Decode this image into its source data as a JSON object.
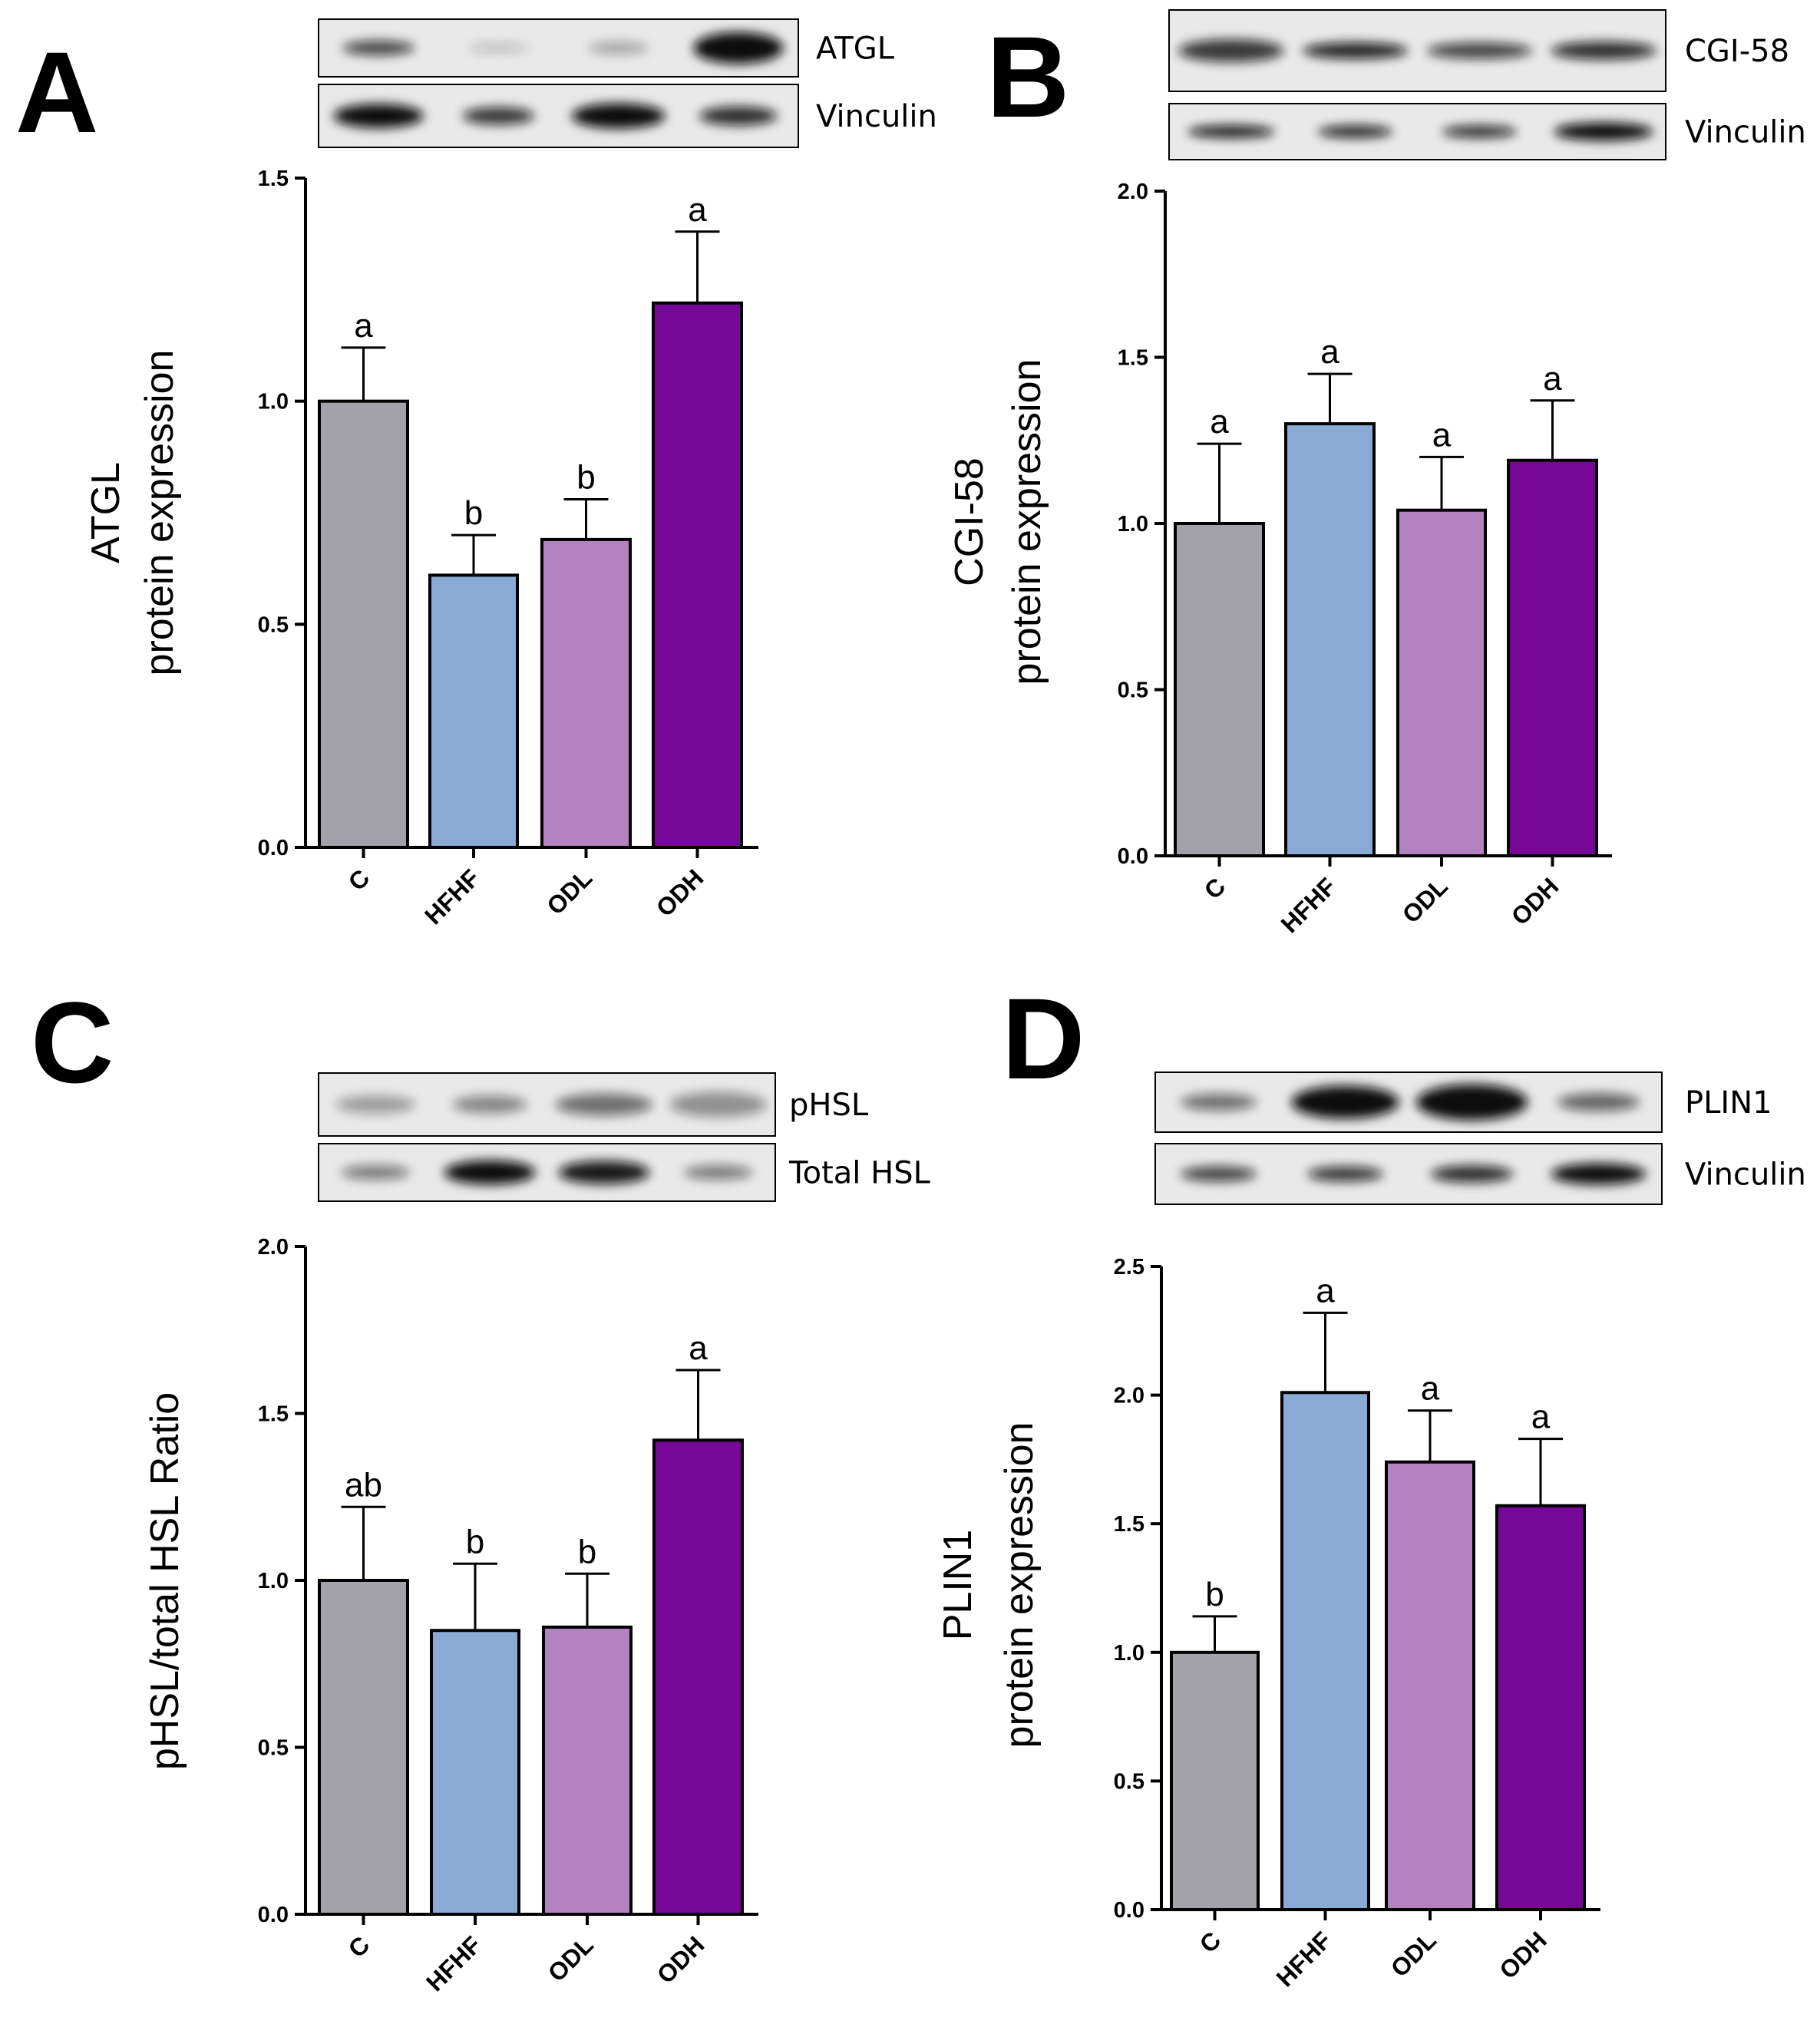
{
  "panels": [
    {
      "letter": "A",
      "blots": [
        "ATGL",
        "Vinculin"
      ],
      "chart_data": {
        "type": "bar",
        "categories": [
          "C",
          "HFHF",
          "ODL",
          "ODH"
        ],
        "values": [
          1.0,
          0.61,
          0.69,
          1.22
        ],
        "errors": [
          0.12,
          0.09,
          0.09,
          0.16
        ],
        "significance": [
          "a",
          "b",
          "b",
          "a"
        ],
        "ylabel_lines": [
          "ATGL",
          "protein expression"
        ],
        "xlabel": "",
        "ylim": [
          0,
          1.5
        ],
        "yticks": [
          "0.0",
          "0.5",
          "1.0",
          "1.5"
        ],
        "grid": false
      }
    },
    {
      "letter": "B",
      "blots": [
        "CGI-58",
        "Vinculin"
      ],
      "chart_data": {
        "type": "bar",
        "categories": [
          "C",
          "HFHF",
          "ODL",
          "ODH"
        ],
        "values": [
          1.0,
          1.3,
          1.04,
          1.19
        ],
        "errors": [
          0.24,
          0.15,
          0.16,
          0.18
        ],
        "significance": [
          "a",
          "a",
          "a",
          "a"
        ],
        "ylabel_lines": [
          "CGI-58",
          "protein expression"
        ],
        "xlabel": "",
        "ylim": [
          0,
          2.0
        ],
        "yticks": [
          "0.0",
          "0.5",
          "1.0",
          "1.5",
          "2.0"
        ],
        "grid": false
      }
    },
    {
      "letter": "C",
      "blots": [
        "pHSL",
        "Total HSL"
      ],
      "chart_data": {
        "type": "bar",
        "categories": [
          "C",
          "HFHF",
          "ODL",
          "ODH"
        ],
        "values": [
          1.0,
          0.85,
          0.86,
          1.42
        ],
        "errors": [
          0.22,
          0.2,
          0.16,
          0.21
        ],
        "significance": [
          "ab",
          "b",
          "b",
          "a"
        ],
        "ylabel_lines": [
          "pHSL/total HSL Ratio"
        ],
        "xlabel": "",
        "ylim": [
          0,
          2.0
        ],
        "yticks": [
          "0.0",
          "0.5",
          "1.0",
          "1.5",
          "2.0"
        ],
        "grid": false
      }
    },
    {
      "letter": "D",
      "blots": [
        "PLIN1",
        "Vinculin"
      ],
      "chart_data": {
        "type": "bar",
        "categories": [
          "C",
          "HFHF",
          "ODL",
          "ODH"
        ],
        "values": [
          1.0,
          2.01,
          1.74,
          1.57
        ],
        "errors": [
          0.14,
          0.31,
          0.2,
          0.26
        ],
        "significance": [
          "b",
          "a",
          "a",
          "a"
        ],
        "ylabel_lines": [
          "PLIN1",
          "protein expression"
        ],
        "xlabel": "",
        "ylim": [
          0,
          2.5
        ],
        "yticks": [
          "0.0",
          "0.5",
          "1.0",
          "1.5",
          "2.0",
          "2.5"
        ],
        "grid": false
      }
    }
  ],
  "colors": {
    "C": "#a3a2a8",
    "HFHF": "#8aaad6",
    "ODL": "#b482c0",
    "ODH": "#760897"
  }
}
